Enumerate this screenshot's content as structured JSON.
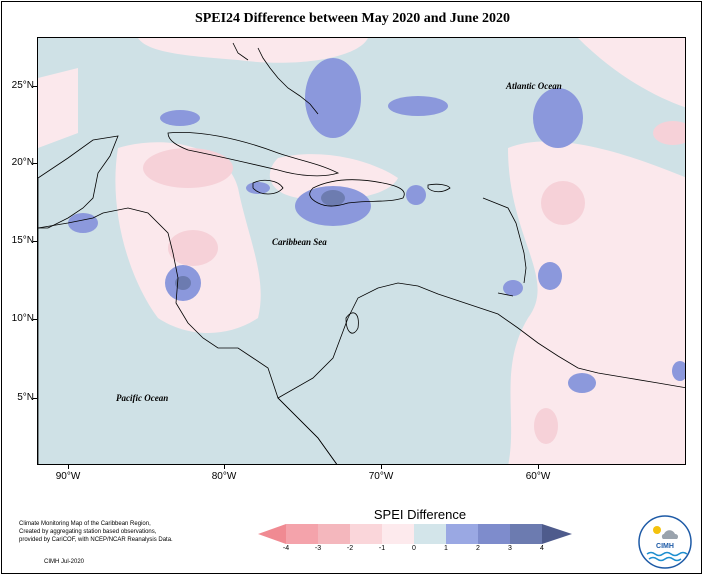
{
  "title": "SPEI24 Difference between May 2020 and June 2020",
  "lat_ticks": [
    "25°N",
    "20°N",
    "15°N",
    "10°N",
    "5°N"
  ],
  "lon_ticks": [
    "90°W",
    "80°W",
    "70°W",
    "60°W"
  ],
  "labels": {
    "atlantic": "Atlantic Ocean",
    "caribbean": "Caribbean Sea",
    "pacific": "Pacific Ocean"
  },
  "legend": {
    "title": "SPEI Difference",
    "ticks": [
      "-4",
      "-3",
      "-2",
      "-1",
      "0",
      "1",
      "2",
      "3",
      "4"
    ],
    "colors": [
      "#f08a92",
      "#f4b7bd",
      "#fad6da",
      "#fdeaed",
      "#d3e5ea",
      "#9aa8e3",
      "#7e8ccc",
      "#6c7bb0",
      "#4e5b8c"
    ]
  },
  "credits": {
    "lines": [
      "Climate Monitoring Map of the Caribbean Region,",
      "Created by aggregating station based observations,",
      "provided by CariCOF, with NCEP/NCAR Reanalysis Data."
    ],
    "date": "CIMH Jul-2020"
  },
  "logo_text": "CIMH",
  "colors": {
    "pos_light": "#cfe1e6",
    "pos_mid": "#8b98dc",
    "pos_dark": "#6c7bb0",
    "neg_light": "#fbe8ec",
    "neg_mid": "#f6d1d8",
    "land": "#ffffff"
  }
}
